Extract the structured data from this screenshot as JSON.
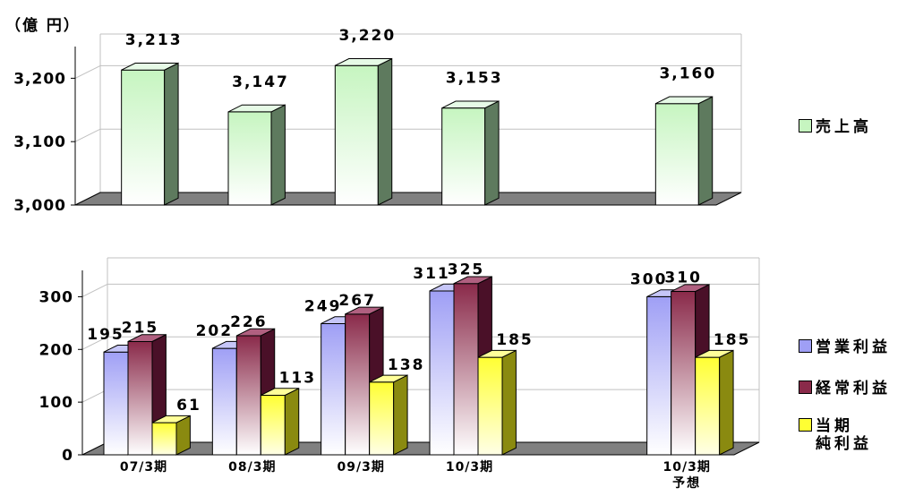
{
  "unit_label": "（億 円）",
  "chart_data": [
    {
      "type": "bar",
      "categories": [
        "07/3期",
        "08/3期",
        "09/3期",
        "10/3期",
        "10/3期 予想"
      ],
      "series": [
        {
          "name": "売上高",
          "values": [
            3213,
            3147,
            3220,
            3153,
            3160
          ],
          "color": "#c6f5c0",
          "labels": [
            "3,213",
            "3,147",
            "3,220",
            "3,153",
            "3,160"
          ]
        }
      ],
      "ylim": [
        3000,
        3250
      ],
      "yticks": [
        "3,000",
        "3,100",
        "3,200"
      ],
      "ytick_values": [
        3000,
        3100,
        3200
      ],
      "grid": true,
      "legend": "right"
    },
    {
      "type": "bar",
      "categories": [
        "07/3期",
        "08/3期",
        "09/3期",
        "10/3期",
        "10/3期 予想"
      ],
      "series": [
        {
          "name": "営業利益",
          "values": [
            195,
            202,
            249,
            311,
            300
          ],
          "color": "#9f9ff5"
        },
        {
          "name": "経常利益",
          "values": [
            215,
            226,
            267,
            325,
            310
          ],
          "color": "#8a2a4a"
        },
        {
          "name": "当期 純利益",
          "values": [
            61,
            113,
            138,
            185,
            185
          ],
          "color": "#ffff33"
        }
      ],
      "ylim": [
        0,
        350
      ],
      "yticks": [
        "0",
        "100",
        "200",
        "300"
      ],
      "ytick_values": [
        0,
        100,
        200,
        300
      ],
      "grid": true,
      "legend": "right"
    }
  ],
  "legend_top": [
    {
      "label": "売上高",
      "color": "#c6f5c0"
    }
  ],
  "legend_bottom": [
    {
      "label": "営業利益",
      "color": "#9f9ff5"
    },
    {
      "label": "経常利益",
      "color": "#8a2a4a"
    },
    {
      "label_line1": "当期",
      "label_line2": "純利益",
      "color": "#ffff33"
    }
  ],
  "x_labels": [
    {
      "line1": "07/3期",
      "line2": ""
    },
    {
      "line1": "08/3期",
      "line2": ""
    },
    {
      "line1": "09/3期",
      "line2": ""
    },
    {
      "line1": "10/3期",
      "line2": ""
    },
    {
      "line1": "10/3期",
      "line2": "予想"
    }
  ]
}
